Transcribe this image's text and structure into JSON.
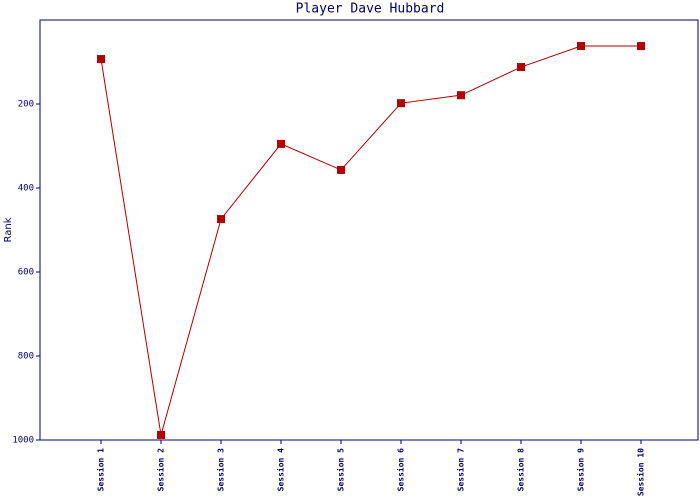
{
  "chart_data": {
    "type": "line",
    "title": "Player Dave Hubbard",
    "ylabel": "Rank",
    "categories": [
      "Session 1",
      "Session 2",
      "Session 3",
      "Session 4",
      "Session 5",
      "Session 6",
      "Session 7",
      "Session 8",
      "Session 9",
      "Session 10"
    ],
    "series": [
      {
        "name": "Rank",
        "color": "#b00000",
        "values": [
          93,
          988,
          474,
          295,
          357,
          198,
          179,
          112,
          62,
          62
        ]
      }
    ],
    "ylim": [
      0,
      1000
    ],
    "yticks": [
      200,
      400,
      600,
      800,
      1000
    ],
    "y_inverted": true,
    "grid": false
  }
}
